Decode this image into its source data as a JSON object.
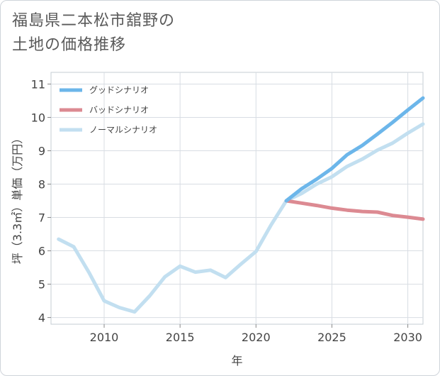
{
  "title_lines": [
    "福島県二本松市舘野の",
    "土地の価格推移"
  ],
  "chart_data": {
    "type": "line",
    "xlabel": "年",
    "ylabel": "坪（3.3㎡）単価（万円）",
    "xlim": [
      2006.5,
      2031
    ],
    "ylim": [
      3.8,
      11.35
    ],
    "xticks": [
      2010,
      2015,
      2020,
      2025,
      2030
    ],
    "yticks": [
      4,
      5,
      6,
      7,
      8,
      9,
      10,
      11
    ],
    "grid": true,
    "legend_position": "top-left",
    "series": [
      {
        "name": "グッドシナリオ",
        "color": "#6cb6ea",
        "x": [
          2022,
          2023,
          2024,
          2025,
          2026,
          2027,
          2028,
          2029,
          2030,
          2031
        ],
        "y": [
          7.5,
          7.86,
          8.15,
          8.47,
          8.88,
          9.16,
          9.5,
          9.85,
          10.22,
          10.58
        ]
      },
      {
        "name": "バッドシナリオ",
        "color": "#dc8a92",
        "x": [
          2022,
          2023,
          2024,
          2025,
          2026,
          2027,
          2028,
          2029,
          2030,
          2031
        ],
        "y": [
          7.5,
          7.43,
          7.36,
          7.28,
          7.22,
          7.18,
          7.16,
          7.06,
          7.01,
          6.95
        ]
      },
      {
        "name": "ノーマルシナリオ",
        "color": "#c2dff0",
        "x": [
          2007,
          2008,
          2009,
          2010,
          2011,
          2012,
          2013,
          2014,
          2015,
          2016,
          2017,
          2018,
          2019,
          2020,
          2021,
          2022,
          2023,
          2024,
          2025,
          2026,
          2027,
          2028,
          2029,
          2030,
          2031
        ],
        "y": [
          6.35,
          6.12,
          5.35,
          4.5,
          4.3,
          4.17,
          4.65,
          5.22,
          5.54,
          5.36,
          5.42,
          5.2,
          5.6,
          5.98,
          6.78,
          7.5,
          7.72,
          8.0,
          8.22,
          8.53,
          8.75,
          9.02,
          9.23,
          9.53,
          9.8
        ]
      }
    ]
  }
}
